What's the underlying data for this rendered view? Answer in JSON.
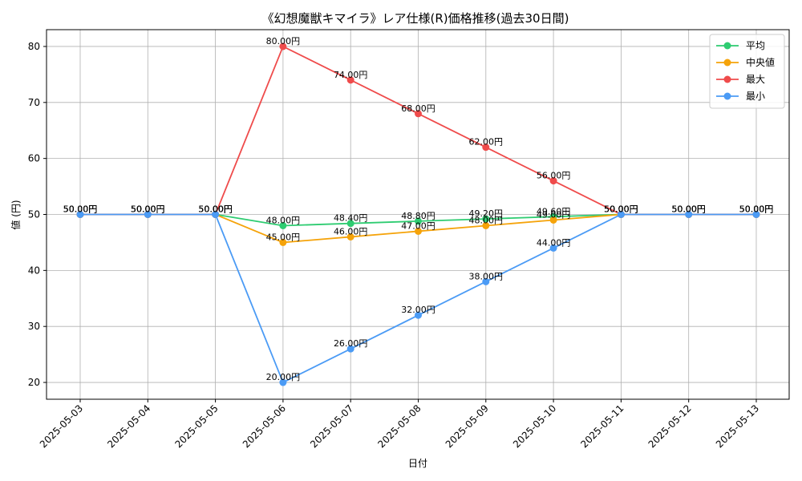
{
  "chart_data": {
    "type": "line",
    "title": "《幻想魔獣キマイラ》レア仕様(R)価格推移(過去30日間)",
    "xlabel": "日付",
    "ylabel": "値 (円)",
    "ylim": [
      17,
      83
    ],
    "yticks": [
      20,
      30,
      40,
      50,
      60,
      70,
      80
    ],
    "grid": true,
    "legend_position": "top-right",
    "categories": [
      "2025-05-03",
      "2025-05-04",
      "2025-05-05",
      "2025-05-06",
      "2025-05-07",
      "2025-05-08",
      "2025-05-09",
      "2025-05-10",
      "2025-05-11",
      "2025-05-12",
      "2025-05-13"
    ],
    "series": [
      {
        "name": "平均",
        "color": "#2ecc71",
        "values": [
          50,
          50,
          50,
          48,
          48.4,
          48.8,
          49.2,
          49.6,
          50,
          50,
          50
        ],
        "labels": [
          "50.00円",
          "50.00円",
          "50.00円",
          "48.00円",
          "48.40円",
          "48.80円",
          "49.20円",
          "49.60円",
          "50.00円",
          "50.00円",
          "50.00円"
        ]
      },
      {
        "name": "中央値",
        "color": "#f5a30a",
        "values": [
          50,
          50,
          50,
          45,
          46,
          47,
          48,
          49,
          50,
          50,
          50
        ],
        "labels": [
          "50.00円",
          "50.00円",
          "50.00円",
          "45.00円",
          "46.00円",
          "47.00円",
          "48.00円",
          "49.00円",
          "50.00円",
          "50.00円",
          "50.00円"
        ]
      },
      {
        "name": "最大",
        "color": "#ef4b4b",
        "values": [
          50,
          50,
          50,
          80,
          74,
          68,
          62,
          56,
          50,
          50,
          50
        ],
        "labels": [
          "50.00円",
          "50.00円",
          "50.00円",
          "80.00円",
          "74.00円",
          "68.00円",
          "62.00円",
          "56.00円",
          "50.00円",
          "50.00円",
          "50.00円"
        ]
      },
      {
        "name": "最小",
        "color": "#4b9bf5",
        "values": [
          50,
          50,
          50,
          20,
          26,
          32,
          38,
          44,
          50,
          50,
          50
        ],
        "labels": [
          "50.00円",
          "50.00円",
          "50.00円",
          "20.00円",
          "26.00円",
          "32.00円",
          "38.00円",
          "44.00円",
          "50.00円",
          "50.00円",
          "50.00円"
        ]
      }
    ]
  }
}
